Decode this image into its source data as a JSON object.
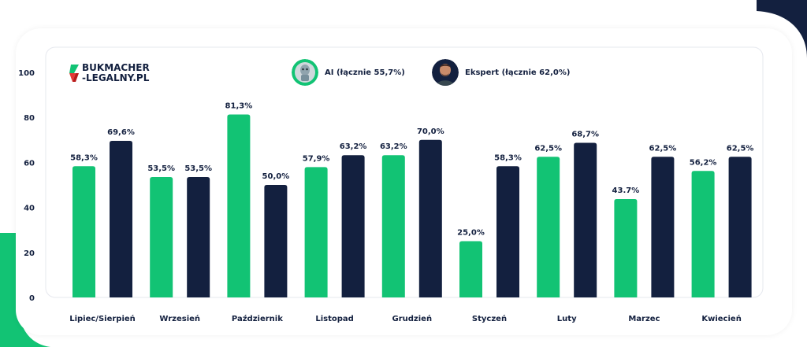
{
  "brand": {
    "logo_line1": "BUKMACHER",
    "logo_line2": "-LEGALNY.PL"
  },
  "legend": {
    "ai_label": "AI (łącznie 55,7%)",
    "expert_label": "Ekspert (łącznie 62,0%)"
  },
  "colors": {
    "ai": "#12c374",
    "expert": "#13203f",
    "deco_navy": "#13203f",
    "deco_green": "#12c374"
  },
  "chart_data": {
    "type": "bar",
    "categories": [
      "Lipiec/Sierpień",
      "Wrzesień",
      "Październik",
      "Listopad",
      "Grudzień",
      "Styczeń",
      "Luty",
      "Marzec",
      "Kwiecień"
    ],
    "series": [
      {
        "name": "AI (łącznie 55,7%)",
        "values": [
          58.3,
          53.5,
          81.3,
          57.9,
          63.2,
          25.0,
          62.5,
          43.7,
          56.2
        ],
        "labels": [
          "58,3%",
          "53,5%",
          "81,3%",
          "57,9%",
          "63,2%",
          "25,0%",
          "62,5%",
          "43.7%",
          "56,2%"
        ]
      },
      {
        "name": "Ekspert (łącznie 62,0%)",
        "values": [
          69.6,
          53.5,
          50.0,
          63.2,
          70.0,
          58.3,
          68.7,
          62.5,
          62.5
        ],
        "labels": [
          "69,6%",
          "53,5%",
          "50,0%",
          "63,2%",
          "70,0%",
          "58,3%",
          "68,7%",
          "62,5%",
          "62,5%"
        ]
      }
    ],
    "yticks": [
      "0",
      "20",
      "40",
      "60",
      "80",
      "100"
    ],
    "ylim": [
      0,
      100
    ]
  }
}
